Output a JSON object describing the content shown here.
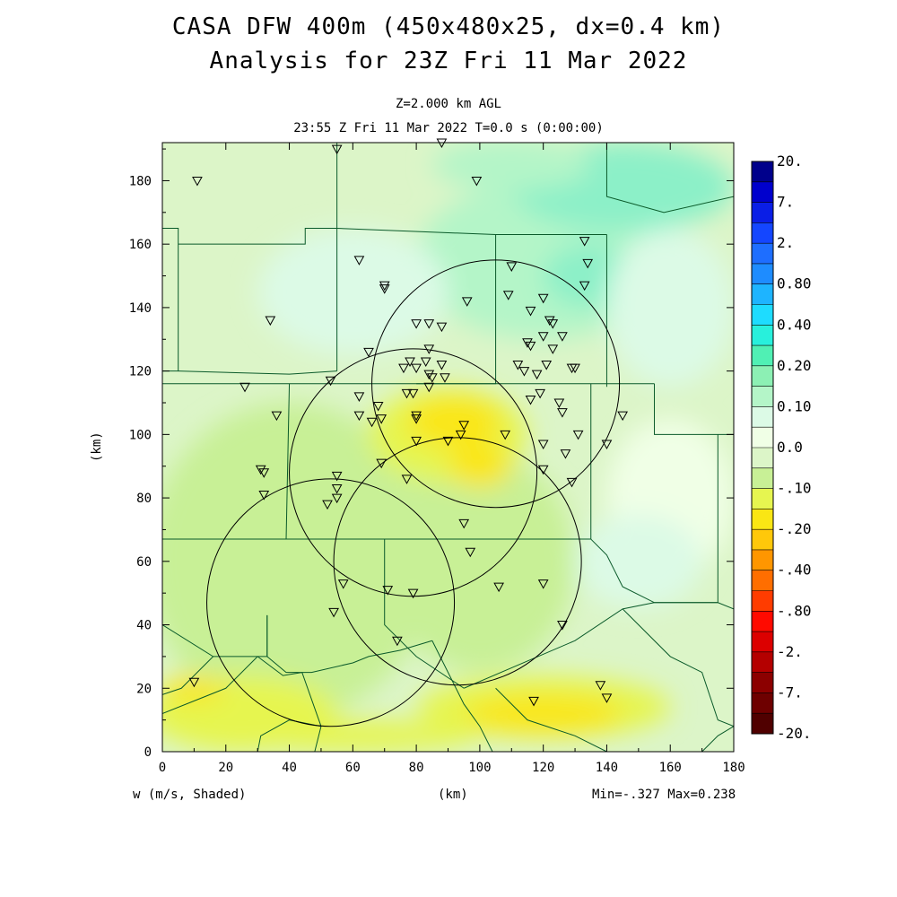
{
  "title": {
    "line1": "CASA DFW 400m (450x480x25, dx=0.4 km)",
    "line2": "Analysis for 23Z Fri 11 Mar 2022"
  },
  "subtitle": {
    "level": "Z=2.000 km AGL",
    "time": "23:55 Z Fri 11 Mar 2022    T=0.0 s (0:00:00)"
  },
  "axes": {
    "x_label": "(km)",
    "y_label": "(km)",
    "x_range": [
      0,
      180
    ],
    "y_range": [
      0,
      192
    ],
    "x_ticks": [
      "0",
      "20",
      "40",
      "60",
      "80",
      "100",
      "120",
      "140",
      "160",
      "180"
    ],
    "y_ticks": [
      "0",
      "20",
      "40",
      "60",
      "80",
      "100",
      "120",
      "140",
      "160",
      "180"
    ]
  },
  "footer": {
    "field": "w (m/s, Shaded)",
    "stats": "Min=-.327 Max=0.238"
  },
  "colorbar": {
    "labels": [
      "20.",
      "7.",
      "2.",
      "0.80",
      "0.40",
      "0.20",
      "0.10",
      "0.0",
      "-.10",
      "-.20",
      "-.40",
      "-.80",
      "-2.",
      "-7.",
      "-20."
    ],
    "colors": [
      "#00008b",
      "#0000cd",
      "#0a1ee6",
      "#1446ff",
      "#1e6eff",
      "#1e8cff",
      "#1eb4ff",
      "#1edcff",
      "#28f0dc",
      "#50f0b4",
      "#8cf0b4",
      "#b4f5c8",
      "#dcfae6",
      "#f0ffe6",
      "#dcf5c8",
      "#c8f096",
      "#e6f550",
      "#fae614",
      "#ffc80a",
      "#ff9600",
      "#ff6e00",
      "#ff3c00",
      "#ff0a00",
      "#dc0000",
      "#b40000",
      "#8c0000",
      "#6e0000",
      "#500000"
    ]
  },
  "map": {
    "background": "#dcf5c8",
    "field_patches": [
      {
        "cx": 120,
        "cy": 155,
        "rx": 40,
        "ry": 25,
        "color": "#b4f5c8"
      },
      {
        "cx": 145,
        "cy": 178,
        "rx": 35,
        "ry": 14,
        "color": "#8cf0c8"
      },
      {
        "cx": 135,
        "cy": 150,
        "rx": 15,
        "ry": 10,
        "color": "#8cf0c8"
      },
      {
        "cx": 110,
        "cy": 185,
        "rx": 25,
        "ry": 8,
        "color": "#b4f5c8"
      },
      {
        "cx": 60,
        "cy": 145,
        "rx": 30,
        "ry": 20,
        "color": "#dcfae6"
      },
      {
        "cx": 160,
        "cy": 140,
        "rx": 20,
        "ry": 25,
        "color": "#dcfae6"
      },
      {
        "cx": 160,
        "cy": 80,
        "rx": 20,
        "ry": 25,
        "color": "#f0ffe6"
      },
      {
        "cx": 150,
        "cy": 60,
        "rx": 20,
        "ry": 15,
        "color": "#dcfae6"
      },
      {
        "cx": 40,
        "cy": 60,
        "rx": 45,
        "ry": 50,
        "color": "#c8f096"
      },
      {
        "cx": 100,
        "cy": 60,
        "rx": 30,
        "ry": 35,
        "color": "#c8f096"
      },
      {
        "cx": 90,
        "cy": 100,
        "rx": 25,
        "ry": 15,
        "color": "#e6f550"
      },
      {
        "cx": 92,
        "cy": 104,
        "rx": 15,
        "ry": 8,
        "color": "#fae614"
      },
      {
        "cx": 100,
        "cy": 90,
        "rx": 10,
        "ry": 7,
        "color": "#fae614"
      },
      {
        "cx": 120,
        "cy": 14,
        "rx": 40,
        "ry": 10,
        "color": "#e6f550"
      },
      {
        "cx": 120,
        "cy": 12,
        "rx": 25,
        "ry": 6,
        "color": "#fae614"
      },
      {
        "cx": 25,
        "cy": 12,
        "rx": 30,
        "ry": 12,
        "color": "#e6f550"
      },
      {
        "cx": 10,
        "cy": 20,
        "rx": 10,
        "ry": 4,
        "color": "#fae614"
      },
      {
        "cx": 60,
        "cy": 5,
        "rx": 40,
        "ry": 5,
        "color": "#e6f550"
      }
    ],
    "county_lines": [
      [
        [
          0,
          165
        ],
        [
          5,
          165
        ],
        [
          5,
          120
        ],
        [
          0,
          120
        ]
      ],
      [
        [
          5,
          160
        ],
        [
          45,
          160
        ],
        [
          45,
          165
        ],
        [
          55,
          165
        ]
      ],
      [
        [
          55,
          192
        ],
        [
          55,
          165
        ],
        [
          55,
          120
        ]
      ],
      [
        [
          5,
          120
        ],
        [
          40,
          119
        ],
        [
          55,
          120
        ]
      ],
      [
        [
          55,
          165
        ],
        [
          105,
          163
        ],
        [
          140,
          163
        ]
      ],
      [
        [
          105,
          163
        ],
        [
          105,
          116
        ],
        [
          80,
          116
        ]
      ],
      [
        [
          140,
          192
        ],
        [
          140,
          175
        ],
        [
          158,
          170
        ],
        [
          180,
          175
        ]
      ],
      [
        [
          140,
          163
        ],
        [
          140,
          115
        ]
      ],
      [
        [
          0,
          116
        ],
        [
          40,
          116
        ],
        [
          55,
          116
        ]
      ],
      [
        [
          40,
          116
        ],
        [
          39,
          67
        ],
        [
          0,
          67
        ]
      ],
      [
        [
          55,
          116
        ],
        [
          80,
          116
        ],
        [
          105,
          116
        ],
        [
          135,
          116
        ],
        [
          155,
          116
        ]
      ],
      [
        [
          155,
          116
        ],
        [
          155,
          100
        ],
        [
          180,
          100
        ]
      ],
      [
        [
          39,
          67
        ],
        [
          70,
          67
        ],
        [
          125,
          67
        ],
        [
          135,
          67
        ]
      ],
      [
        [
          135,
          116
        ],
        [
          135,
          67
        ]
      ],
      [
        [
          175,
          100
        ],
        [
          175,
          47
        ],
        [
          155,
          47
        ]
      ],
      [
        [
          135,
          67
        ],
        [
          140,
          62
        ],
        [
          145,
          52
        ],
        [
          155,
          47
        ],
        [
          175,
          47
        ],
        [
          180,
          45
        ]
      ],
      [
        [
          0,
          67
        ],
        [
          0,
          40
        ],
        [
          16,
          30
        ],
        [
          33,
          30
        ],
        [
          33,
          43
        ]
      ],
      [
        [
          16,
          30
        ],
        [
          6,
          20
        ],
        [
          0,
          18
        ]
      ],
      [
        [
          33,
          30
        ],
        [
          33,
          43
        ]
      ],
      [
        [
          33,
          30
        ],
        [
          39,
          25
        ],
        [
          47,
          25
        ],
        [
          60,
          28
        ],
        [
          65,
          30
        ],
        [
          75,
          32
        ],
        [
          85,
          35
        ]
      ],
      [
        [
          0,
          12
        ],
        [
          20,
          20
        ],
        [
          30,
          30
        ]
      ],
      [
        [
          30,
          30
        ],
        [
          38,
          24
        ],
        [
          44,
          25
        ]
      ],
      [
        [
          44,
          25
        ],
        [
          50,
          8
        ],
        [
          48,
          0
        ]
      ],
      [
        [
          85,
          35
        ],
        [
          95,
          15
        ],
        [
          100,
          8
        ],
        [
          104,
          0
        ]
      ],
      [
        [
          70,
          67
        ],
        [
          70,
          40
        ],
        [
          80,
          30
        ],
        [
          95,
          20
        ]
      ],
      [
        [
          95,
          20
        ],
        [
          130,
          35
        ],
        [
          145,
          45
        ],
        [
          155,
          47
        ]
      ],
      [
        [
          145,
          45
        ],
        [
          160,
          30
        ],
        [
          170,
          25
        ],
        [
          175,
          10
        ],
        [
          180,
          8
        ]
      ],
      [
        [
          105,
          20
        ],
        [
          115,
          10
        ],
        [
          130,
          5
        ],
        [
          140,
          0
        ]
      ],
      [
        [
          170,
          0
        ],
        [
          175,
          5
        ],
        [
          180,
          8
        ]
      ],
      [
        [
          30,
          0
        ],
        [
          31,
          5
        ],
        [
          40,
          10
        ],
        [
          50,
          8
        ]
      ]
    ],
    "radar_rings": [
      {
        "cx": 105,
        "cy": 116,
        "r": 39
      },
      {
        "cx": 79,
        "cy": 88,
        "r": 39
      },
      {
        "cx": 93,
        "cy": 60,
        "r": 39
      },
      {
        "cx": 53,
        "cy": 47,
        "r": 39
      }
    ],
    "stations": [
      [
        55,
        190
      ],
      [
        88,
        192
      ],
      [
        11,
        180
      ],
      [
        99,
        180
      ],
      [
        133,
        161
      ],
      [
        62,
        155
      ],
      [
        134,
        154
      ],
      [
        70,
        147
      ],
      [
        70,
        146
      ],
      [
        110,
        153
      ],
      [
        133,
        147
      ],
      [
        120,
        143
      ],
      [
        109,
        144
      ],
      [
        96,
        142
      ],
      [
        116,
        139
      ],
      [
        122,
        136
      ],
      [
        123,
        135
      ],
      [
        34,
        136
      ],
      [
        80,
        135
      ],
      [
        84,
        135
      ],
      [
        88,
        134
      ],
      [
        126,
        131
      ],
      [
        120,
        131
      ],
      [
        115,
        129
      ],
      [
        116,
        128
      ],
      [
        123,
        127
      ],
      [
        65,
        126
      ],
      [
        84,
        127
      ],
      [
        78,
        123
      ],
      [
        83,
        123
      ],
      [
        88,
        122
      ],
      [
        76,
        121
      ],
      [
        80,
        121
      ],
      [
        84,
        119
      ],
      [
        85,
        118
      ],
      [
        89,
        118
      ],
      [
        112,
        122
      ],
      [
        114,
        120
      ],
      [
        118,
        119
      ],
      [
        121,
        122
      ],
      [
        129,
        121
      ],
      [
        130,
        121
      ],
      [
        53,
        117
      ],
      [
        26,
        115
      ],
      [
        84,
        115
      ],
      [
        77,
        113
      ],
      [
        79,
        113
      ],
      [
        62,
        112
      ],
      [
        119,
        113
      ],
      [
        116,
        111
      ],
      [
        125,
        110
      ],
      [
        68,
        109
      ],
      [
        36,
        106
      ],
      [
        62,
        106
      ],
      [
        69,
        105
      ],
      [
        66,
        104
      ],
      [
        126,
        107
      ],
      [
        145,
        106
      ],
      [
        80,
        105
      ],
      [
        80,
        106
      ],
      [
        95,
        103
      ],
      [
        94,
        100
      ],
      [
        108,
        100
      ],
      [
        80,
        98
      ],
      [
        90,
        98
      ],
      [
        120,
        97
      ],
      [
        131,
        100
      ],
      [
        140,
        97
      ],
      [
        127,
        94
      ],
      [
        69,
        91
      ],
      [
        120,
        89
      ],
      [
        31,
        89
      ],
      [
        32,
        88
      ],
      [
        55,
        87
      ],
      [
        77,
        86
      ],
      [
        129,
        85
      ],
      [
        55,
        83
      ],
      [
        55,
        80
      ],
      [
        52,
        78
      ],
      [
        32,
        81
      ],
      [
        95,
        72
      ],
      [
        97,
        63
      ],
      [
        57,
        53
      ],
      [
        71,
        51
      ],
      [
        79,
        50
      ],
      [
        106,
        52
      ],
      [
        120,
        53
      ],
      [
        54,
        44
      ],
      [
        126,
        40
      ],
      [
        74,
        35
      ],
      [
        10,
        22
      ],
      [
        138,
        21
      ],
      [
        117,
        16
      ],
      [
        140,
        17
      ]
    ]
  }
}
